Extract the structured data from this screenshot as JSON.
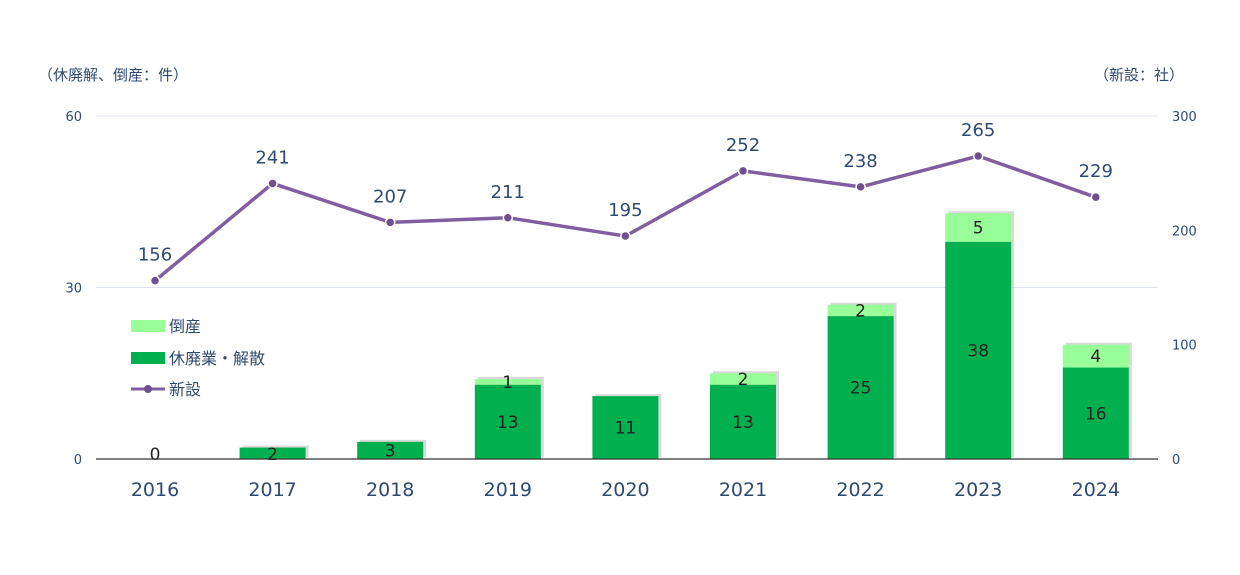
{
  "units": {
    "left": "（休廃解、倒産：件）",
    "right": "（新設：社）"
  },
  "chart_data": {
    "type": "bar",
    "categories": [
      "2016",
      "2017",
      "2018",
      "2019",
      "2020",
      "2021",
      "2022",
      "2023",
      "2024"
    ],
    "series": [
      {
        "name": "休廃業・解散",
        "type": "bar",
        "axis": "left",
        "color": "#00b04f",
        "values": [
          0,
          2,
          3,
          13,
          11,
          13,
          25,
          38,
          16
        ]
      },
      {
        "name": "倒産",
        "type": "bar",
        "axis": "left",
        "color": "#99ff99",
        "values": [
          0,
          0,
          0,
          1,
          0,
          2,
          2,
          5,
          4
        ]
      },
      {
        "name": "新設",
        "type": "line",
        "axis": "right",
        "color": "#7f5f9f",
        "values": [
          156,
          241,
          207,
          211,
          195,
          252,
          238,
          265,
          229
        ]
      }
    ],
    "y_left": {
      "min": 0,
      "max": 60,
      "ticks": [
        0,
        30,
        60
      ]
    },
    "y_right": {
      "min": 0,
      "max": 300,
      "ticks": [
        0,
        100,
        200,
        300
      ]
    },
    "stacked": true,
    "grid": true,
    "legend_position": "left"
  }
}
